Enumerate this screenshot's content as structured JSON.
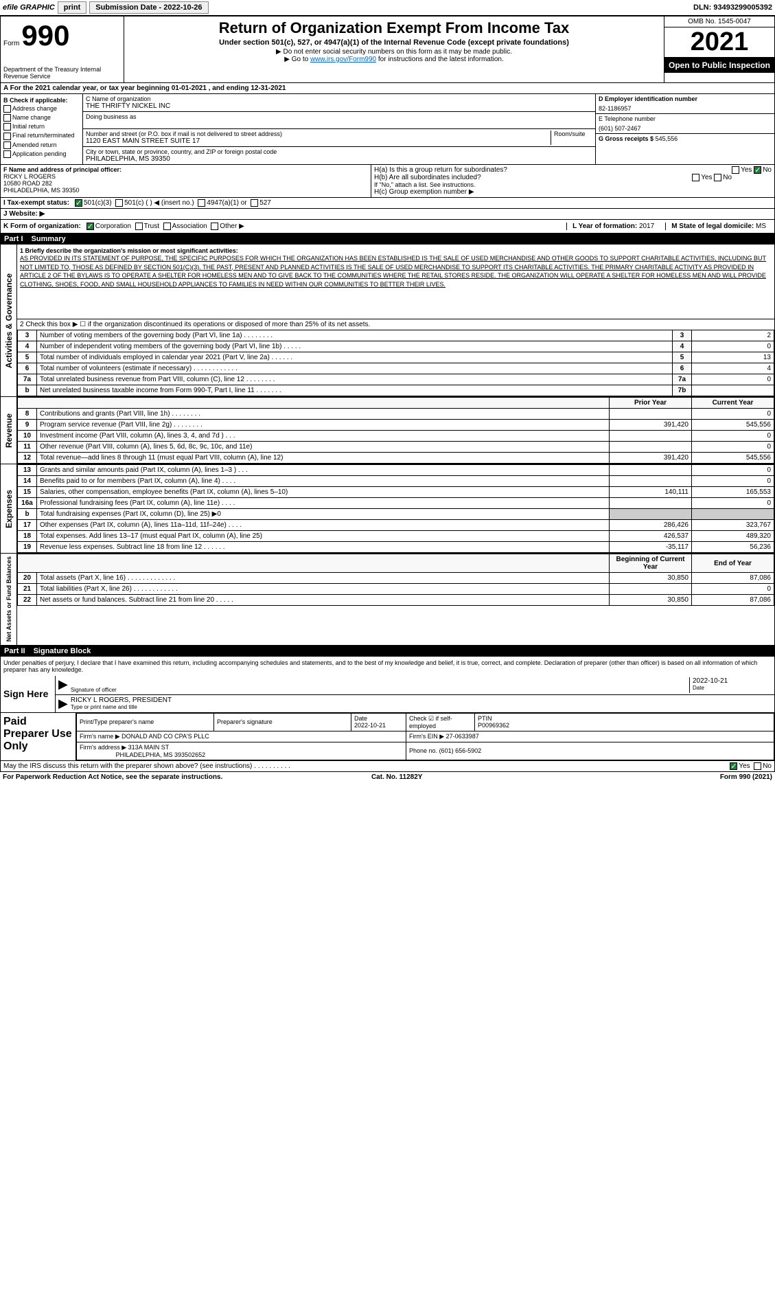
{
  "topbar": {
    "efile": "efile GRAPHIC",
    "print": "print",
    "submission": "Submission Date - 2022-10-26",
    "dln": "DLN: 93493299005392"
  },
  "header": {
    "form_label": "Form",
    "form_number": "990",
    "dept": "Department of the Treasury Internal Revenue Service",
    "title": "Return of Organization Exempt From Income Tax",
    "subtitle": "Under section 501(c), 527, or 4947(a)(1) of the Internal Revenue Code (except private foundations)",
    "note1": "▶ Do not enter social security numbers on this form as it may be made public.",
    "note2": "▶ Go to www.irs.gov/Form990 for instructions and the latest information.",
    "link": "www.irs.gov/Form990",
    "omb": "OMB No. 1545-0047",
    "year": "2021",
    "open": "Open to Public Inspection"
  },
  "row_a": "A For the 2021 calendar year, or tax year beginning 01-01-2021    , and ending 12-31-2021",
  "col_b": {
    "header": "B Check if applicable:",
    "items": [
      "Address change",
      "Name change",
      "Initial return",
      "Final return/terminated",
      "Amended return",
      "Application pending"
    ]
  },
  "col_c": {
    "name_label": "C Name of organization",
    "name": "THE THRIFTY NICKEL INC",
    "dba_label": "Doing business as",
    "addr_label": "Number and street (or P.O. box if mail is not delivered to street address)",
    "addr": "1120 EAST MAIN STREET SUITE 17",
    "room_label": "Room/suite",
    "city_label": "City or town, state or province, country, and ZIP or foreign postal code",
    "city": "PHILADELPHIA, MS  39350"
  },
  "col_d": {
    "ein_label": "D Employer identification number",
    "ein": "82-1186957",
    "phone_label": "E Telephone number",
    "phone": "(601) 507-2467",
    "gross_label": "G Gross receipts $",
    "gross": "545,556"
  },
  "row_f": {
    "label": "F  Name and address of principal officer:",
    "name": "RICKY L ROGERS",
    "addr1": "10580 ROAD 282",
    "addr2": "PHILADELPHIA, MS  39350",
    "ha_label": "H(a)  Is this a group return for subordinates?",
    "ha_yes": "Yes",
    "ha_no": "No",
    "hb_label": "H(b)  Are all subordinates included?",
    "hb_note": "If \"No,\" attach a list. See instructions.",
    "hc_label": "H(c)  Group exemption number ▶"
  },
  "row_i": {
    "label": "I    Tax-exempt status:",
    "opts": [
      "501(c)(3)",
      "501(c) (  ) ◀ (insert no.)",
      "4947(a)(1) or",
      "527"
    ]
  },
  "row_j": {
    "label": "J    Website: ▶"
  },
  "row_k": {
    "label": "K Form of organization:",
    "opts": [
      "Corporation",
      "Trust",
      "Association",
      "Other ▶"
    ],
    "year_label": "L Year of formation:",
    "year": "2017",
    "state_label": "M State of legal domicile:",
    "state": "MS"
  },
  "part1": {
    "label": "Part I",
    "title": "Summary"
  },
  "mission": {
    "label": "1   Briefly describe the organization's mission or most significant activities:",
    "text": "AS PROVIDED IN ITS STATEMENT OF PURPOSE, THE SPECIFIC PURPOSES FOR WHICH THE ORGANIZATION HAS BEEN ESTABLISHED IS THE SALE OF USED MERCHANDISE AND OTHER GOODS TO SUPPORT CHARITABLE ACTIVITIES, INCLUDING BUT NOT LIMITED TO, THOSE AS DEFINED BY SECTION 501(C)(3). THE PAST, PRESENT AND PLANNED ACTIVITIES IS THE SALE OF USED MERCHANDISE TO SUPPORT ITS CHARITABLE ACTIVITIES. THE PRIMARY CHARITABLE ACTIVITY AS PROVIDED IN ARTICLE 2 OF THE BYLAWS IS TO OPERATE A SHELTER FOR HOMELESS MEN AND TO GIVE BACK TO THE COMMUNITIES WHERE THE RETAIL STORES RESIDE. THE ORGANIZATION WILL OPERATE A SHELTER FOR HOMELESS MEN AND WILL PROVIDE CLOTHING, SHOES, FOOD, AND SMALL HOUSEHOLD APPLIANCES TO FAMILIES IN NEED WITHIN OUR COMMUNITIES TO BETTER THEIR LIVES."
  },
  "activities": {
    "tab": "Activities & Governance",
    "line2": "2   Check this box ▶ ☐  if the organization discontinued its operations or disposed of more than 25% of its net assets.",
    "rows": [
      {
        "n": "3",
        "label": "Number of voting members of the governing body (Part VI, line 1a)  .    .    .    .    .    .    .    .",
        "ln": "3",
        "val": "2"
      },
      {
        "n": "4",
        "label": "Number of independent voting members of the governing body (Part VI, line 1b)  .    .    .    .    .",
        "ln": "4",
        "val": "0"
      },
      {
        "n": "5",
        "label": "Total number of individuals employed in calendar year 2021 (Part V, line 2a)  .    .    .    .    .    .",
        "ln": "5",
        "val": "13"
      },
      {
        "n": "6",
        "label": "Total number of volunteers (estimate if necessary)  .    .    .    .    .    .    .    .    .    .    .    .",
        "ln": "6",
        "val": "4"
      },
      {
        "n": "7a",
        "label": "Total unrelated business revenue from Part VIII, column (C), line 12  .    .    .    .    .    .    .    .",
        "ln": "7a",
        "val": "0"
      },
      {
        "n": "b",
        "label": "Net unrelated business taxable income from Form 990-T, Part I, line 11  .    .    .    .    .    .    .",
        "ln": "7b",
        "val": ""
      }
    ]
  },
  "revenue": {
    "tab": "Revenue",
    "prior_header": "Prior Year",
    "current_header": "Current Year",
    "rows": [
      {
        "n": "8",
        "label": "Contributions and grants (Part VIII, line 1h)  .    .    .    .    .    .    .    .",
        "prior": "",
        "current": "0"
      },
      {
        "n": "9",
        "label": "Program service revenue (Part VIII, line 2g)  .    .    .    .    .    .    .    .",
        "prior": "391,420",
        "current": "545,556"
      },
      {
        "n": "10",
        "label": "Investment income (Part VIII, column (A), lines 3, 4, and 7d )  .    .    .",
        "prior": "",
        "current": "0"
      },
      {
        "n": "11",
        "label": "Other revenue (Part VIII, column (A), lines 5, 6d, 8c, 9c, 10c, and 11e)",
        "prior": "",
        "current": "0"
      },
      {
        "n": "12",
        "label": "Total revenue—add lines 8 through 11 (must equal Part VIII, column (A), line 12)",
        "prior": "391,420",
        "current": "545,556"
      }
    ]
  },
  "expenses": {
    "tab": "Expenses",
    "rows": [
      {
        "n": "13",
        "label": "Grants and similar amounts paid (Part IX, column (A), lines 1–3 )  .    .    .",
        "prior": "",
        "current": "0"
      },
      {
        "n": "14",
        "label": "Benefits paid to or for members (Part IX, column (A), line 4)  .    .    .    .",
        "prior": "",
        "current": "0"
      },
      {
        "n": "15",
        "label": "Salaries, other compensation, employee benefits (Part IX, column (A), lines 5–10)",
        "prior": "140,111",
        "current": "165,553"
      },
      {
        "n": "16a",
        "label": "Professional fundraising fees (Part IX, column (A), line 11e)  .    .    .    .",
        "prior": "",
        "current": "0"
      },
      {
        "n": "b",
        "label": "Total fundraising expenses (Part IX, column (D), line 25) ▶0",
        "prior": "shaded",
        "current": "shaded"
      },
      {
        "n": "17",
        "label": "Other expenses (Part IX, column (A), lines 11a–11d, 11f–24e)  .    .    .    .",
        "prior": "286,426",
        "current": "323,767"
      },
      {
        "n": "18",
        "label": "Total expenses. Add lines 13–17 (must equal Part IX, column (A), line 25)",
        "prior": "426,537",
        "current": "489,320"
      },
      {
        "n": "19",
        "label": "Revenue less expenses. Subtract line 18 from line 12  .    .    .    .    .    .",
        "prior": "-35,117",
        "current": "56,236"
      }
    ]
  },
  "netassets": {
    "tab": "Net Assets or Fund Balances",
    "begin_header": "Beginning of Current Year",
    "end_header": "End of Year",
    "rows": [
      {
        "n": "20",
        "label": "Total assets (Part X, line 16)  .    .    .    .    .    .    .    .    .    .    .    .    .",
        "prior": "30,850",
        "current": "87,086"
      },
      {
        "n": "21",
        "label": "Total liabilities (Part X, line 26)  .    .    .    .    .    .    .    .    .    .    .    .",
        "prior": "",
        "current": "0"
      },
      {
        "n": "22",
        "label": "Net assets or fund balances. Subtract line 21 from line 20  .    .    .    .    .",
        "prior": "30,850",
        "current": "87,086"
      }
    ]
  },
  "part2": {
    "label": "Part II",
    "title": "Signature Block"
  },
  "sig": {
    "declaration": "Under penalties of perjury, I declare that I have examined this return, including accompanying schedules and statements, and to the best of my knowledge and belief, it is true, correct, and complete. Declaration of preparer (other than officer) is based on all information of which preparer has any knowledge.",
    "sign_here": "Sign Here",
    "sig_label": "Signature of officer",
    "sig_date": "2022-10-21",
    "date_label": "Date",
    "name": "RICKY L ROGERS, PRESIDENT",
    "name_label": "Type or print name and title"
  },
  "paid": {
    "label": "Paid Preparer Use Only",
    "print_label": "Print/Type preparer's name",
    "sig_label": "Preparer's signature",
    "date_label": "Date",
    "date": "2022-10-21",
    "check_label": "Check ☑ if self-employed",
    "ptin_label": "PTIN",
    "ptin": "P00969362",
    "firm_name_label": "Firm's name    ▶",
    "firm_name": "DONALD AND CO CPA'S PLLC",
    "firm_ein_label": "Firm's EIN ▶",
    "firm_ein": "27-0633987",
    "firm_addr_label": "Firm's address ▶",
    "firm_addr": "313A MAIN ST",
    "firm_city": "PHILADELPHIA, MS  393502652",
    "phone_label": "Phone no.",
    "phone": "(601) 656-5902"
  },
  "footer": {
    "discuss": "May the IRS discuss this return with the preparer shown above? (see instructions)  .    .    .    .    .    .    .    .    .    .",
    "yes": "Yes",
    "no": "No"
  },
  "bottom": {
    "paperwork": "For Paperwork Reduction Act Notice, see the separate instructions.",
    "cat": "Cat. No. 11282Y",
    "form": "Form 990 (2021)"
  }
}
